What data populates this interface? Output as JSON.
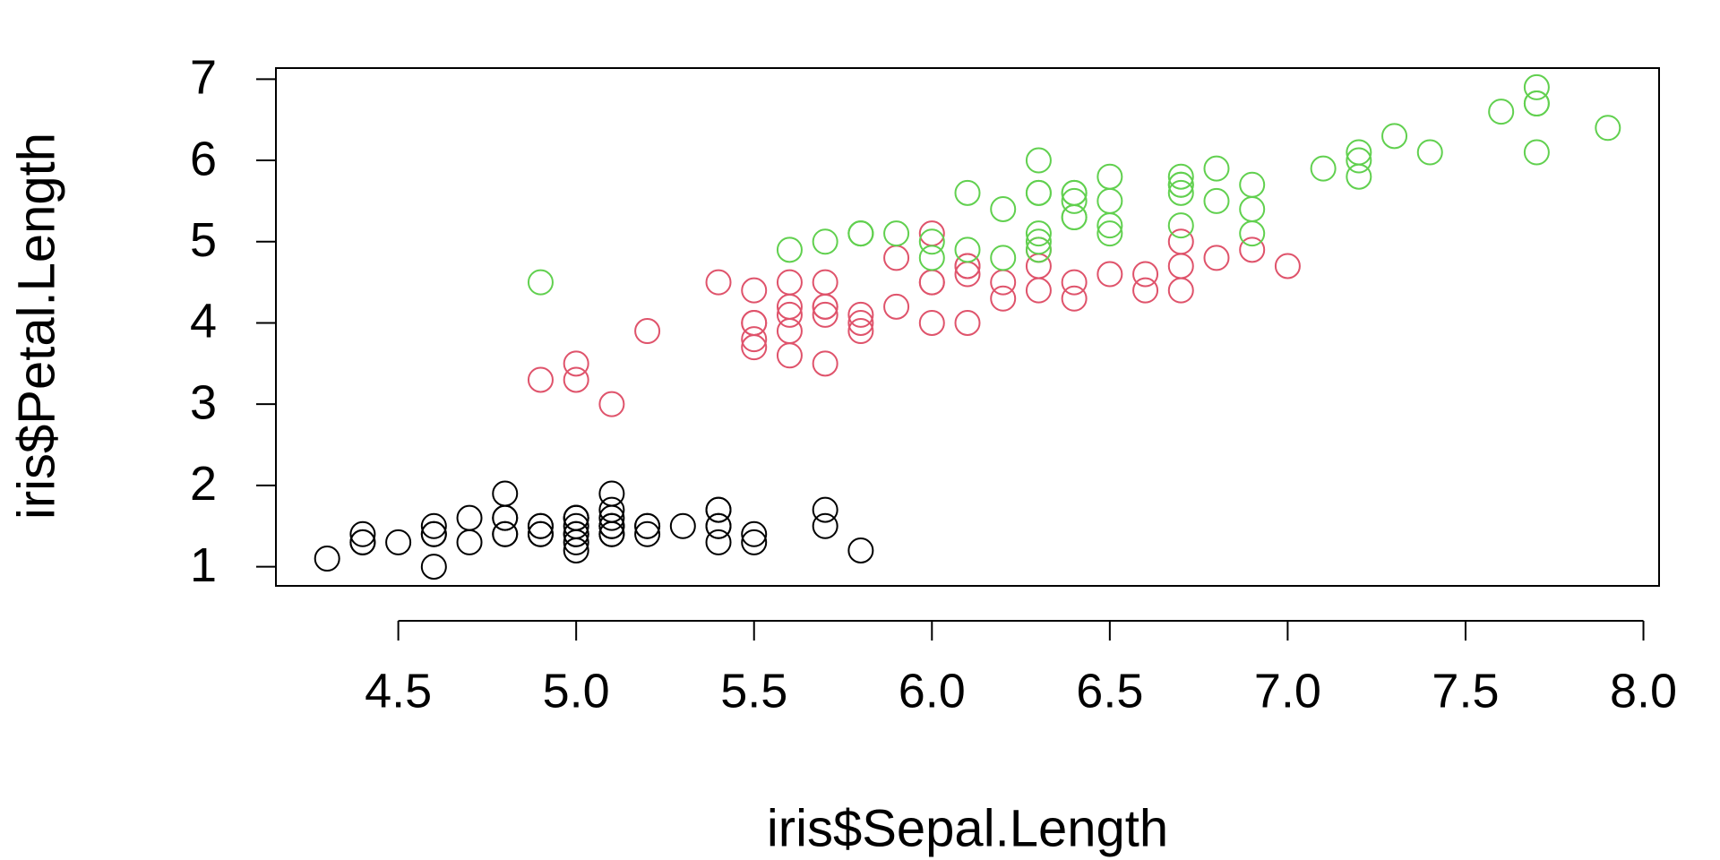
{
  "chart_data": {
    "type": "scatter",
    "x_label": "iris$Sepal.Length",
    "y_label": "iris$Petal.Length",
    "xlim": [
      4.156,
      8.044
    ],
    "ylim": [
      0.764,
      7.136
    ],
    "xticks": [
      4.5,
      {
        "value": 5,
        "label": "5.0"
      },
      5.5,
      {
        "value": 6,
        "label": "6.0"
      },
      6.5,
      {
        "value": 7,
        "label": "7.0"
      },
      7.5,
      {
        "value": 8,
        "label": "8.0"
      }
    ],
    "yticks": [
      1,
      2,
      3,
      4,
      5,
      6,
      7
    ],
    "grid": false,
    "series": [
      {
        "color": "#000000",
        "x": [
          5.1,
          4.9,
          4.7,
          4.6,
          5.0,
          5.4,
          4.6,
          5.0,
          4.4,
          4.9,
          5.4,
          4.8,
          4.8,
          4.3,
          5.8,
          5.7,
          5.4,
          5.1,
          5.7,
          5.1,
          5.4,
          5.1,
          4.6,
          5.1,
          4.8,
          5.0,
          5.0,
          5.2,
          5.2,
          4.7,
          4.8,
          5.4,
          5.2,
          5.5,
          4.9,
          5.0,
          5.5,
          4.9,
          4.4,
          5.1,
          5.0,
          4.5,
          4.4,
          5.0,
          5.1,
          4.8,
          5.1,
          4.6,
          5.3,
          5.0
        ],
        "values": [
          1.4,
          1.4,
          1.3,
          1.5,
          1.4,
          1.7,
          1.4,
          1.5,
          1.4,
          1.5,
          1.5,
          1.6,
          1.4,
          1.1,
          1.2,
          1.5,
          1.3,
          1.4,
          1.7,
          1.5,
          1.7,
          1.5,
          1.0,
          1.7,
          1.9,
          1.6,
          1.6,
          1.5,
          1.4,
          1.6,
          1.6,
          1.5,
          1.5,
          1.4,
          1.5,
          1.2,
          1.3,
          1.4,
          1.3,
          1.5,
          1.3,
          1.3,
          1.3,
          1.6,
          1.9,
          1.4,
          1.6,
          1.4,
          1.5,
          1.4
        ]
      },
      {
        "color": "#DF536B",
        "x": [
          7.0,
          6.4,
          6.9,
          5.5,
          6.5,
          5.7,
          6.3,
          4.9,
          6.6,
          5.2,
          5.0,
          5.9,
          6.0,
          6.1,
          5.6,
          6.7,
          5.6,
          5.8,
          6.2,
          5.6,
          5.9,
          6.1,
          6.3,
          6.1,
          6.4,
          6.6,
          6.8,
          6.7,
          6.0,
          5.7,
          5.5,
          5.5,
          5.8,
          6.0,
          5.4,
          6.0,
          6.7,
          6.3,
          5.6,
          5.5,
          5.5,
          6.1,
          5.8,
          5.0,
          5.6,
          5.7,
          5.7,
          6.2,
          5.1,
          5.7
        ],
        "values": [
          4.7,
          4.5,
          4.9,
          4.0,
          4.6,
          4.5,
          4.7,
          3.3,
          4.6,
          3.9,
          3.5,
          4.2,
          4.0,
          4.7,
          3.6,
          4.4,
          4.5,
          4.1,
          4.5,
          3.9,
          4.8,
          4.0,
          4.9,
          4.7,
          4.3,
          4.4,
          4.8,
          5.0,
          4.5,
          3.5,
          3.8,
          3.7,
          3.9,
          5.1,
          4.5,
          4.5,
          4.7,
          4.4,
          4.1,
          4.0,
          4.4,
          4.6,
          4.0,
          3.3,
          4.2,
          4.2,
          4.2,
          4.3,
          3.0,
          4.1
        ]
      },
      {
        "color": "#61D04F",
        "x": [
          6.3,
          5.8,
          7.1,
          6.3,
          6.5,
          7.6,
          4.9,
          7.3,
          6.7,
          7.2,
          6.5,
          6.4,
          6.8,
          5.7,
          5.8,
          6.4,
          6.5,
          7.7,
          7.7,
          6.0,
          6.9,
          5.6,
          7.7,
          6.3,
          6.7,
          7.2,
          6.2,
          6.1,
          6.4,
          7.2,
          7.4,
          7.9,
          6.4,
          6.3,
          6.1,
          7.7,
          6.3,
          6.4,
          6.0,
          6.9,
          6.7,
          6.9,
          5.8,
          6.8,
          6.7,
          6.7,
          6.3,
          6.5,
          6.2,
          5.9
        ],
        "values": [
          6.0,
          5.1,
          5.9,
          5.6,
          5.8,
          6.6,
          4.5,
          6.3,
          5.8,
          6.1,
          5.1,
          5.3,
          5.5,
          5.0,
          5.1,
          5.3,
          5.5,
          6.7,
          6.9,
          5.0,
          5.7,
          4.9,
          6.7,
          4.9,
          5.7,
          6.0,
          4.8,
          4.9,
          5.6,
          5.8,
          6.1,
          6.4,
          5.6,
          5.1,
          5.6,
          6.1,
          5.6,
          5.5,
          4.8,
          5.4,
          5.6,
          5.1,
          5.1,
          5.9,
          5.7,
          5.2,
          5.0,
          5.2,
          5.4,
          5.1
        ]
      }
    ]
  }
}
